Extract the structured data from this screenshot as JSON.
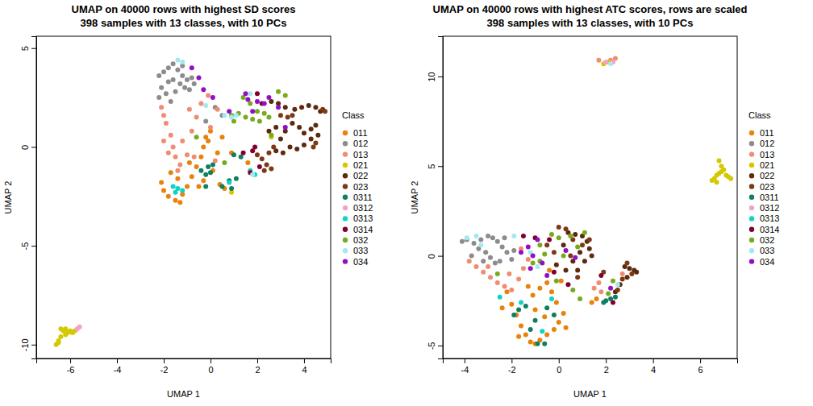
{
  "chart_data": [
    {
      "type": "scatter",
      "title": "UMAP on 40000 rows with highest SD scores",
      "subtitle": "398 samples with 13 classes, with 10 PCs",
      "x_label": "UMAP 1",
      "y_label": "UMAP 2",
      "xlim": [
        -7.45,
        5.14
      ],
      "ylim": [
        -10.7,
        5.6
      ],
      "xticks": [
        -6,
        -4,
        -2,
        0,
        2,
        4
      ],
      "yticks": [
        -10,
        -5,
        0,
        5
      ],
      "legend": "right",
      "legend_title": "Class",
      "marker": "circle",
      "series": [
        {
          "name": "011",
          "color": "#E8820C",
          "x": [
            -2.1,
            -2.0,
            -1.8,
            -1.5,
            -1.3,
            -1.2,
            -1.0,
            -0.8,
            -0.6,
            -0.4,
            -0.3,
            -0.2,
            -0.1,
            0.0,
            -0.5,
            -0.3,
            0.1,
            0.3,
            0.4,
            0.6,
            -1.7,
            -1.4,
            0.5,
            0.9,
            -0.9,
            1.6
          ],
          "values": [
            -1.8,
            -2.2,
            -2.5,
            -2.7,
            -2.8,
            -2.4,
            -2.0,
            -1.5,
            -1.0,
            -0.5,
            0.0,
            0.5,
            0.3,
            0.8,
            -2.0,
            -1.7,
            -1.2,
            -0.3,
            -1.9,
            -2.1,
            -1.3,
            -1.6,
            0.5,
            -0.3,
            -0.8,
            -0.8
          ]
        },
        {
          "name": "012",
          "color": "#8C8C8C",
          "x": [
            -2.2,
            -2.0,
            -1.8,
            -1.6,
            -1.4,
            -1.2,
            -1.0,
            -0.8,
            -2.1,
            -1.9,
            -1.7,
            -1.5,
            -1.3,
            -1.1,
            -0.9,
            -2.2,
            -1.6,
            -1.8,
            -1.2,
            -0.7,
            0.2,
            0.5,
            -0.2
          ],
          "values": [
            3.6,
            3.8,
            4.0,
            4.2,
            3.9,
            3.6,
            3.4,
            3.5,
            3.0,
            2.7,
            2.3,
            2.8,
            3.2,
            3.0,
            2.9,
            2.5,
            3.4,
            3.3,
            4.1,
            3.2,
            2.0,
            1.6,
            1.3
          ]
        },
        {
          "name": "013",
          "color": "#F08C72",
          "x": [
            -2.1,
            -2.0,
            -1.9,
            -1.7,
            -1.6,
            -1.5,
            -1.4,
            -1.2,
            -1.0,
            -0.8,
            -0.6,
            -0.4,
            -0.1,
            0.3,
            -1.8,
            -2.0,
            -1.3,
            -0.7,
            0.2,
            -0.9,
            0.0
          ],
          "values": [
            2.0,
            1.6,
            1.2,
            0.6,
            0.0,
            -0.5,
            -1.2,
            0.3,
            -0.4,
            0.8,
            1.5,
            2.2,
            2.6,
            1.9,
            -0.3,
            0.3,
            -0.9,
            -0.5,
            -0.7,
            1.9,
            1.0
          ]
        },
        {
          "name": "021",
          "color": "#D4C800",
          "x": [
            -6.6,
            -6.5,
            -6.4,
            -6.3,
            -6.2,
            -6.1,
            -6.0,
            -5.9,
            -5.8,
            -6.2,
            -6.4,
            -6.5,
            0.9,
            2.6
          ],
          "values": [
            -10.0,
            -9.8,
            -9.6,
            -9.3,
            -9.2,
            -9.4,
            -9.3,
            -9.4,
            -9.3,
            -9.5,
            -9.2,
            -9.9,
            -2.3,
            0.5
          ]
        },
        {
          "name": "022",
          "color": "#5C2A0E",
          "x": [
            2.5,
            2.8,
            3.0,
            3.2,
            3.5,
            3.8,
            4.0,
            4.3,
            4.5,
            4.7,
            4.5,
            4.2,
            3.9,
            3.6,
            3.2,
            2.9,
            2.6,
            3.4,
            3.7,
            4.0,
            4.3,
            4.6,
            3.1,
            2.8
          ],
          "values": [
            0.8,
            1.0,
            0.4,
            0.8,
            1.2,
            1.0,
            0.7,
            0.9,
            1.1,
            1.8,
            2.0,
            2.1,
            2.0,
            1.9,
            2.0,
            2.2,
            2.3,
            0.0,
            -0.1,
            0.1,
            0.4,
            0.6,
            -0.3,
            -0.2
          ]
        },
        {
          "name": "023",
          "color": "#7B3A14",
          "x": [
            2.0,
            2.2,
            2.4,
            2.6,
            2.3,
            2.5,
            2.7,
            3.3,
            3.5,
            3.0,
            4.8,
            4.9,
            4.5,
            4.4
          ],
          "values": [
            -0.4,
            -0.6,
            -0.9,
            -1.1,
            -1.2,
            -0.3,
            0.0,
            1.5,
            1.6,
            1.6,
            1.9,
            1.8,
            0.2,
            0.0
          ]
        },
        {
          "name": "0311",
          "color": "#0E8060",
          "x": [
            -0.4,
            -0.2,
            0.0,
            0.1,
            -0.1,
            0.8,
            1.1,
            0.5,
            0.9,
            1.0,
            1.3,
            -0.2
          ],
          "values": [
            -1.2,
            -1.4,
            -1.3,
            -0.9,
            -1.0,
            -1.7,
            -1.6,
            -2.0,
            -2.1,
            -0.4,
            -0.5,
            -2.0
          ]
        },
        {
          "name": "0312",
          "color": "#F4A0C8",
          "x": [
            -5.6,
            -5.7
          ],
          "values": [
            -9.1,
            -9.2
          ]
        },
        {
          "name": "0313",
          "color": "#12D2C4",
          "x": [
            -1.6,
            -1.4,
            -1.2,
            -1.5,
            1.7,
            1.9,
            0.8
          ],
          "values": [
            -2.0,
            -2.1,
            -2.2,
            -2.3,
            -1.2,
            -1.4,
            -1.8
          ]
        },
        {
          "name": "0314",
          "color": "#82002E",
          "x": [
            1.4,
            1.8,
            2.1,
            1.7,
            2.2,
            2.0,
            1.9
          ],
          "values": [
            -0.3,
            -0.2,
            -1.0,
            -1.3,
            2.2,
            2.7,
            0.0
          ]
        },
        {
          "name": "032",
          "color": "#78AA1E",
          "x": [
            0.9,
            1.0,
            1.2,
            1.5,
            1.7,
            1.8,
            2.0,
            2.1,
            2.3,
            2.5,
            2.9,
            3.2,
            2.6,
            1.4,
            0.6,
            -0.6
          ],
          "values": [
            1.6,
            1.3,
            1.7,
            1.5,
            2.2,
            1.4,
            1.8,
            1.3,
            1.7,
            1.5,
            2.8,
            2.6,
            0.6,
            2.5,
            -0.8,
            0.5
          ]
        },
        {
          "name": "033",
          "color": "#A4E8F2",
          "x": [
            -1.4,
            -1.2,
            0.6,
            0.9,
            1.1,
            1.7,
            -0.2,
            1.8
          ],
          "values": [
            4.4,
            4.3,
            1.6,
            1.5,
            1.6,
            2.7,
            2.1,
            -1.4
          ]
        },
        {
          "name": "034",
          "color": "#9210C4",
          "x": [
            -0.8,
            -0.5,
            -0.3,
            0.1,
            0.8,
            1.5,
            1.6,
            2.0,
            2.3,
            2.5,
            2.9,
            3.2,
            1.8
          ],
          "values": [
            4.0,
            3.5,
            2.9,
            2.5,
            1.8,
            2.7,
            2.4,
            2.3,
            2.2,
            2.5,
            2.0,
            1.0,
            1.8
          ]
        }
      ]
    },
    {
      "type": "scatter",
      "title": "UMAP on 40000 rows with highest ATC scores, rows are scaled",
      "subtitle": "398 samples with 13 classes, with 10 PCs",
      "x_label": "UMAP 1",
      "y_label": "UMAP 2",
      "xlim": [
        -4.92,
        7.57
      ],
      "ylim": [
        -5.72,
        12.24
      ],
      "xticks": [
        -4,
        -2,
        0,
        2,
        4,
        6
      ],
      "yticks": [
        -5,
        0,
        5,
        10
      ],
      "legend": "right",
      "legend_title": "Class",
      "marker": "circle",
      "series": [
        {
          "name": "011",
          "color": "#E8820C",
          "x": [
            -2.2,
            -2.0,
            -1.8,
            -1.6,
            -1.4,
            -1.2,
            -1.0,
            -0.8,
            -0.5,
            -0.2,
            0.0,
            0.2,
            -0.1,
            -0.3,
            -0.5,
            -0.8,
            -1.1,
            -1.3,
            -1.0,
            -0.6,
            0.1,
            -0.4,
            0.3,
            1.4,
            1.6,
            -2.4,
            -1.7
          ],
          "values": [
            -2.0,
            -2.7,
            -3.3,
            -3.9,
            -4.4,
            -4.8,
            -4.9,
            -4.7,
            -4.4,
            -4.1,
            -3.7,
            -3.2,
            -2.6,
            -2.0,
            -1.5,
            -1.8,
            -2.2,
            -1.7,
            -3.0,
            -3.4,
            -1.4,
            -0.8,
            -4.0,
            -2.6,
            -2.4,
            -2.9,
            -4.5
          ]
        },
        {
          "name": "012",
          "color": "#8C8C8C",
          "x": [
            -4.1,
            -3.9,
            -3.6,
            -3.3,
            -3.0,
            -2.8,
            -2.6,
            -2.4,
            -2.2,
            -2.0,
            -3.4,
            -3.1,
            -2.9,
            -2.7,
            -2.5,
            -3.7,
            -3.2,
            -2.3,
            -1.9
          ],
          "values": [
            0.8,
            0.9,
            0.7,
            0.9,
            1.1,
            1.0,
            0.8,
            0.5,
            0.2,
            -0.2,
            0.4,
            0.2,
            -0.1,
            -0.4,
            -0.3,
            0.0,
            -0.3,
            1.0,
            0.3
          ]
        },
        {
          "name": "013",
          "color": "#F08C72",
          "x": [
            -3.8,
            -3.5,
            -3.2,
            -2.9,
            -2.6,
            -2.3,
            -2.0,
            -1.7,
            -1.5,
            -1.3,
            -1.6,
            -2.1,
            -3.0,
            1.5,
            1.7,
            1.8,
            2.7,
            1.7,
            2.4,
            2.2
          ],
          "values": [
            -0.3,
            -0.6,
            -0.9,
            -1.2,
            -1.5,
            -1.7,
            -1.9,
            -1.3,
            -0.7,
            -0.2,
            0.4,
            -1.0,
            -0.6,
            -1.8,
            -1.5,
            -2.0,
            -1.0,
            10.9,
            11.0,
            10.9
          ]
        },
        {
          "name": "021",
          "color": "#D4C800",
          "x": [
            6.5,
            6.6,
            6.7,
            6.8,
            6.9,
            7.0,
            7.1,
            7.2,
            7.3,
            6.9,
            6.8,
            6.7,
            1.9,
            2.1
          ],
          "values": [
            4.2,
            4.3,
            4.5,
            4.6,
            4.7,
            4.8,
            4.5,
            4.4,
            4.3,
            5.0,
            5.3,
            4.1,
            10.7,
            10.8
          ]
        },
        {
          "name": "022",
          "color": "#5C2A0E",
          "x": [
            0.4,
            0.7,
            1.0,
            1.2,
            1.3,
            1.4,
            0.9,
            0.6,
            0.3,
            0.8,
            2.8,
            3.0,
            3.2,
            3.3,
            2.9,
            2.6,
            2.4,
            1.1,
            0.2,
            -0.1
          ],
          "values": [
            1.3,
            1.2,
            1.1,
            0.8,
            0.4,
            0.0,
            0.2,
            -0.3,
            -0.8,
            -0.8,
            -0.6,
            -0.7,
            -0.8,
            -0.9,
            -1.2,
            -1.6,
            -2.0,
            -0.3,
            0.6,
            -0.5
          ]
        },
        {
          "name": "023",
          "color": "#7B3A14",
          "x": [
            0.0,
            0.3,
            0.6,
            1.0,
            1.3,
            0.5,
            -0.2,
            -0.5,
            2.9,
            3.1,
            2.7,
            2.5,
            1.9,
            0.8
          ],
          "values": [
            1.6,
            1.5,
            0.9,
            0.6,
            0.9,
            0.0,
            0.2,
            0.6,
            -0.4,
            -1.0,
            -1.3,
            -1.9,
            -0.9,
            -1.2
          ]
        },
        {
          "name": "0311",
          "color": "#0E8060",
          "x": [
            -1.9,
            -1.7,
            -1.4,
            -1.0,
            -0.5,
            -0.2,
            -0.6,
            -0.9,
            -1.2,
            2.0,
            2.2,
            2.4,
            1.9
          ],
          "values": [
            -3.3,
            -3.0,
            -2.8,
            -3.6,
            -2.9,
            -3.3,
            -4.9,
            -4.9,
            -4.1,
            -2.5,
            -2.4,
            -2.3,
            -2.6
          ]
        },
        {
          "name": "0312",
          "color": "#F4A0C8",
          "x": [
            2.0,
            2.3
          ],
          "values": [
            10.8,
            10.8
          ]
        },
        {
          "name": "0313",
          "color": "#12D2C4",
          "x": [
            -2.5,
            -1.6,
            -0.7,
            -0.3
          ],
          "values": [
            -2.3,
            -2.6,
            -4.2,
            -2.4
          ]
        },
        {
          "name": "0314",
          "color": "#82002E",
          "x": [
            -0.4,
            -1.0,
            -1.5,
            -0.2,
            0.4,
            2.3,
            1.8
          ],
          "values": [
            0.9,
            1.0,
            1.1,
            -0.9,
            -1.6,
            -2.6,
            -1.1
          ]
        },
        {
          "name": "032",
          "color": "#78AA1E",
          "x": [
            -0.8,
            -0.6,
            -0.3,
            0.0,
            0.2,
            0.5,
            0.8,
            1.1,
            -0.8,
            -0.1,
            0.6,
            0.9,
            2.1,
            2.3,
            -2.6,
            -1.1
          ],
          "values": [
            0.6,
            0.1,
            1.2,
            1.0,
            0.0,
            1.1,
            0.5,
            1.3,
            -0.3,
            -1.4,
            -1.9,
            -2.4,
            -2.1,
            -1.4,
            -1.0,
            -0.4
          ]
        },
        {
          "name": "033",
          "color": "#A4E8F2",
          "x": [
            -3.9,
            -3.5,
            -1.9,
            -1.2,
            -0.9,
            -3.3,
            2.5,
            2.2
          ],
          "values": [
            1.0,
            1.1,
            1.1,
            0.2,
            -0.6,
            0.6,
            -1.6,
            10.7
          ]
        },
        {
          "name": "034",
          "color": "#9210C4",
          "x": [
            -1.6,
            -1.3,
            -1.1,
            -0.7,
            -0.5,
            0.3,
            0.7,
            -1.2,
            2.2,
            -0.9
          ],
          "values": [
            0.2,
            0.5,
            0.0,
            -0.4,
            -1.1,
            0.3,
            -0.1,
            -0.7,
            -1.8,
            0.9
          ]
        }
      ]
    }
  ]
}
